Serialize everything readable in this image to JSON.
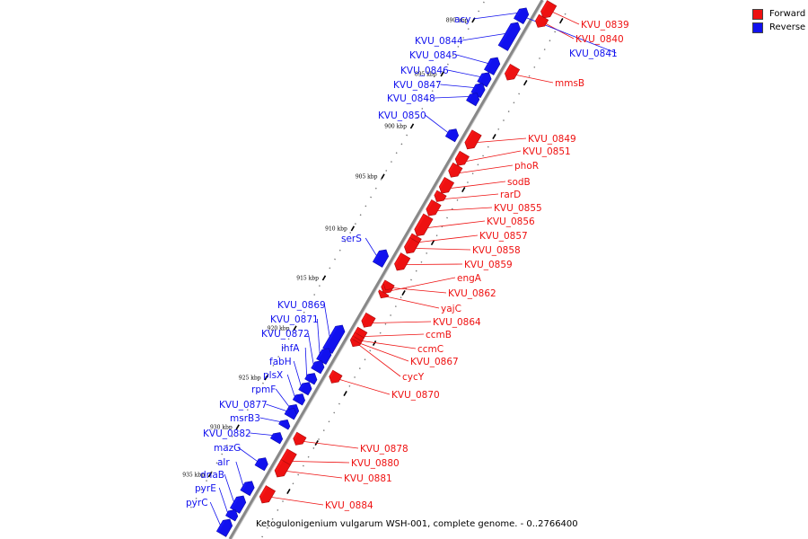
{
  "caption": "Ketogulonigenium vulgarum WSH-001, complete genome. - 0..2766400",
  "legend": [
    {
      "label": "Forward",
      "color": "#ee1111"
    },
    {
      "label": "Reverse",
      "color": "#1111ee"
    }
  ],
  "colors": {
    "forward": "#ee1111",
    "reverse": "#1111ee",
    "backbone": "#888888"
  },
  "ticks": [
    "890 kbp",
    "895 kbp",
    "900 kbp",
    "905 kbp",
    "910 kbp",
    "915 kbp",
    "920 kbp",
    "925 kbp",
    "930 kbp",
    "935 kbp"
  ],
  "genes": [
    {
      "name": "KVU_0839",
      "strand": "forward"
    },
    {
      "name": "KVU_0840",
      "strand": "forward"
    },
    {
      "name": "KVU_0841",
      "strand": "reverse"
    },
    {
      "name": "acy",
      "strand": "reverse"
    },
    {
      "name": "KVU_0844",
      "strand": "reverse"
    },
    {
      "name": "KVU_0845",
      "strand": "reverse"
    },
    {
      "name": "KVU_0846",
      "strand": "reverse"
    },
    {
      "name": "KVU_0847",
      "strand": "reverse"
    },
    {
      "name": "KVU_0848",
      "strand": "reverse"
    },
    {
      "name": "mmsB",
      "strand": "forward"
    },
    {
      "name": "KVU_0850",
      "strand": "reverse"
    },
    {
      "name": "KVU_0849",
      "strand": "forward"
    },
    {
      "name": "KVU_0851",
      "strand": "forward"
    },
    {
      "name": "phoR",
      "strand": "forward"
    },
    {
      "name": "sodB",
      "strand": "forward"
    },
    {
      "name": "rarD",
      "strand": "forward"
    },
    {
      "name": "KVU_0855",
      "strand": "forward"
    },
    {
      "name": "KVU_0856",
      "strand": "forward"
    },
    {
      "name": "KVU_0857",
      "strand": "forward"
    },
    {
      "name": "KVU_0858",
      "strand": "forward"
    },
    {
      "name": "KVU_0859",
      "strand": "forward"
    },
    {
      "name": "serS",
      "strand": "reverse"
    },
    {
      "name": "engA",
      "strand": "forward"
    },
    {
      "name": "KVU_0862",
      "strand": "forward"
    },
    {
      "name": "yajC",
      "strand": "forward"
    },
    {
      "name": "KVU_0864",
      "strand": "forward"
    },
    {
      "name": "ccmB",
      "strand": "forward"
    },
    {
      "name": "ccmC",
      "strand": "forward"
    },
    {
      "name": "KVU_0867",
      "strand": "forward"
    },
    {
      "name": "cycY",
      "strand": "forward"
    },
    {
      "name": "KVU_0869",
      "strand": "reverse"
    },
    {
      "name": "KVU_0871",
      "strand": "reverse"
    },
    {
      "name": "KVU_0872",
      "strand": "reverse"
    },
    {
      "name": "ihfA",
      "strand": "reverse"
    },
    {
      "name": "fabH",
      "strand": "reverse"
    },
    {
      "name": "plsX",
      "strand": "reverse"
    },
    {
      "name": "rpmF",
      "strand": "reverse"
    },
    {
      "name": "KVU_0870",
      "strand": "forward"
    },
    {
      "name": "KVU_0877",
      "strand": "reverse"
    },
    {
      "name": "msrB3",
      "strand": "reverse"
    },
    {
      "name": "KVU_0882",
      "strand": "reverse"
    },
    {
      "name": "KVU_0878",
      "strand": "forward"
    },
    {
      "name": "mazG",
      "strand": "reverse"
    },
    {
      "name": "KVU_0880",
      "strand": "forward"
    },
    {
      "name": "alr",
      "strand": "reverse"
    },
    {
      "name": "KVU_0881",
      "strand": "forward"
    },
    {
      "name": "dnaB",
      "strand": "reverse"
    },
    {
      "name": "pyrE",
      "strand": "reverse"
    },
    {
      "name": "KVU_0884",
      "strand": "forward"
    },
    {
      "name": "pyrC",
      "strand": "reverse"
    }
  ]
}
